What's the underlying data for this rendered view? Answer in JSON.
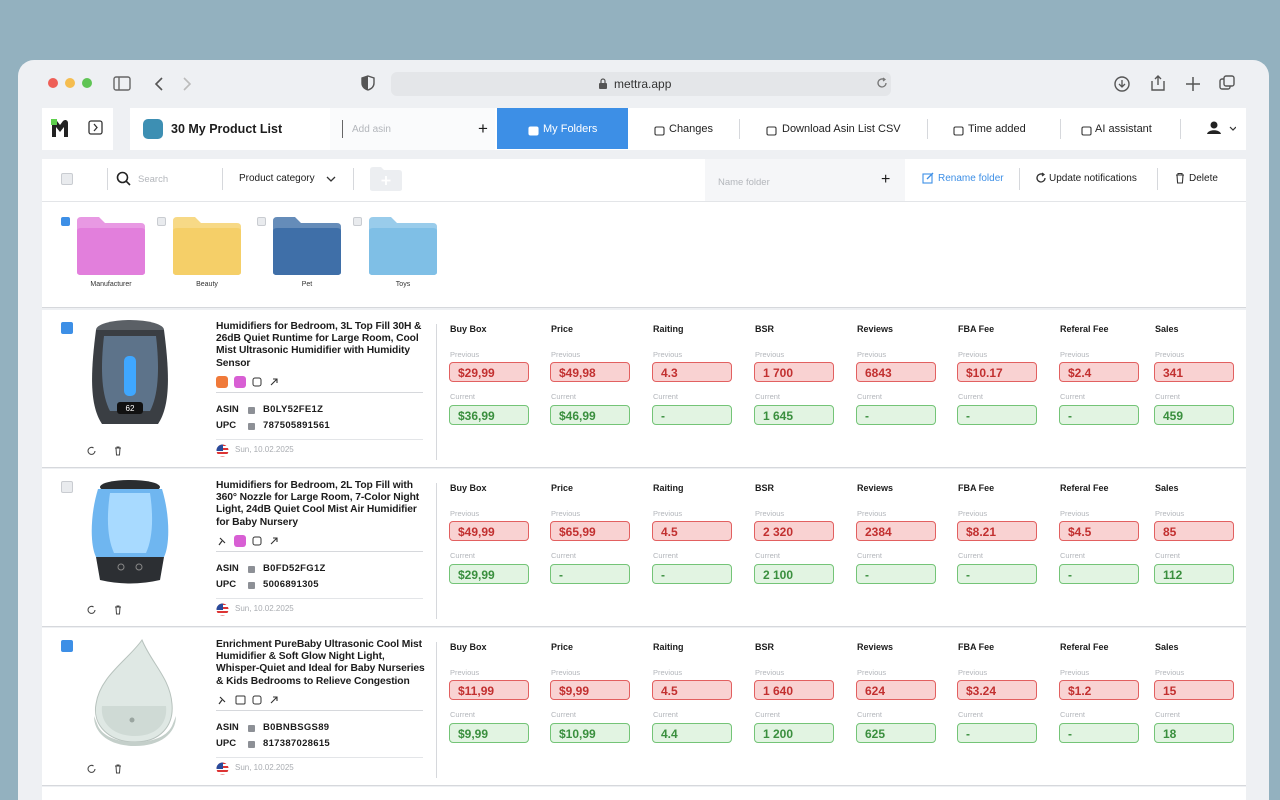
{
  "browser": {
    "url": "mettra.app"
  },
  "toolbar": {
    "list_title": "30 My Product List",
    "add_asin_placeholder": "Add asin",
    "tabs": [
      "My Folders",
      "Changes",
      "Download Asin List CSV",
      "Time added",
      "AI assistant"
    ]
  },
  "filters": {
    "search_placeholder": "Search",
    "category": "Product category",
    "folder_name_placeholder": "Name folder",
    "actions": [
      "Rename folder",
      "Update notifications",
      "Delete"
    ]
  },
  "folders": [
    {
      "name": "Manufacturer",
      "color": "#e27fdc",
      "checked": true
    },
    {
      "name": "Beauty",
      "color": "#f5cf68",
      "checked": false
    },
    {
      "name": "Pet",
      "color": "#3f6fa8",
      "checked": false
    },
    {
      "name": "Toys",
      "color": "#7fbfe6",
      "checked": false
    }
  ],
  "columns": [
    "Buy Box",
    "Price",
    "Raiting",
    "BSR",
    "Reviews",
    "FBA Fee",
    "Referal Fee",
    "Sales"
  ],
  "labels": {
    "previous": "Previous",
    "current": "Current",
    "asin": "ASIN",
    "upc": "UPC"
  },
  "products": [
    {
      "title": "Humidifiers for Bedroom, 3L Top Fill 30H & 26dB Quiet Runtime for Large Room, Cool Mist Ultrasonic Humidifier with Humidity Sensor",
      "asin": "B0LY52FE1Z",
      "upc": "787505891561",
      "date": "Sun, 10.02.2025",
      "checked": true,
      "previous": [
        "$29,99",
        "$49,98",
        "4.3",
        "1 700",
        "6843",
        "$10.17",
        "$2.4",
        "341"
      ],
      "current": [
        "$36,99",
        "$46,99",
        "-",
        "1 645",
        "-",
        "-",
        "-",
        "459"
      ]
    },
    {
      "title": "Humidifiers for Bedroom, 2L Top Fill with 360° Nozzle for Large Room, 7-Color Night Light, 24dB Quiet Cool Mist Air Humidifier for Baby Nursery",
      "asin": "B0FD52FG1Z",
      "upc": "5006891305",
      "date": "Sun, 10.02.2025",
      "checked": false,
      "previous": [
        "$49,99",
        "$65,99",
        "4.5",
        "2 320",
        "2384",
        "$8.21",
        "$4.5",
        "85"
      ],
      "current": [
        "$29,99",
        "-",
        "-",
        "2 100",
        "-",
        "-",
        "-",
        "112"
      ]
    },
    {
      "title": "Enrichment PureBaby Ultrasonic Cool Mist Humidifier & Soft Glow Night Light, Whisper-Quiet and Ideal for Baby Nurseries & Kids Bedrooms to Relieve Congestion",
      "asin": "B0BNBSGS89",
      "upc": "817387028615",
      "date": "Sun, 10.02.2025",
      "checked": true,
      "previous": [
        "$11,99",
        "$9,99",
        "4.5",
        "1 640",
        "624",
        "$3.24",
        "$1.2",
        "15"
      ],
      "current": [
        "$9,99",
        "$10,99",
        "4.4",
        "1 200",
        "625",
        "-",
        "-",
        "18"
      ]
    }
  ]
}
